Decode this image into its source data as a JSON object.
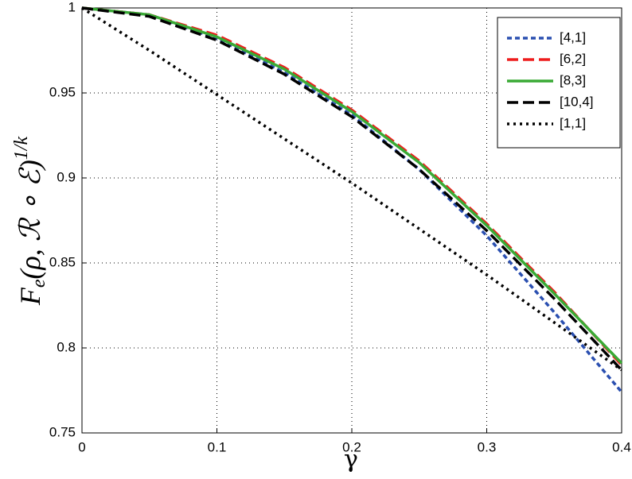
{
  "chart_data": {
    "type": "line",
    "x_label": "γ",
    "y_label": {
      "base": "F",
      "sub": "e",
      "main": "(ρ, ℛ ∘ ℰ)",
      "sup": "1/k"
    },
    "x": [
      0,
      0.05,
      0.1,
      0.15,
      0.2,
      0.25,
      0.3,
      0.35,
      0.4
    ],
    "series": [
      {
        "name": "[4,1]",
        "color": "#2a4fb0",
        "dash": "short",
        "values": [
          1,
          0.996,
          0.982,
          0.962,
          0.937,
          0.905,
          0.866,
          0.821,
          0.774
        ]
      },
      {
        "name": "[6,2]",
        "color": "#ee1c1c",
        "dash": "long",
        "values": [
          1,
          0.996,
          0.984,
          0.965,
          0.94,
          0.91,
          0.873,
          0.833,
          0.79
        ]
      },
      {
        "name": "[8,3]",
        "color": "#3aaa35",
        "dash": "solid",
        "values": [
          1,
          0.996,
          0.983,
          0.964,
          0.939,
          0.909,
          0.872,
          0.832,
          0.791
        ]
      },
      {
        "name": "[10,4]",
        "color": "#000000",
        "dash": "long",
        "values": [
          1,
          0.995,
          0.981,
          0.961,
          0.936,
          0.905,
          0.869,
          0.829,
          0.787
        ]
      },
      {
        "name": "[1,1]",
        "color": "#000000",
        "dash": "dot",
        "values": [
          1,
          0.975,
          0.949,
          0.923,
          0.897,
          0.87,
          0.843,
          0.815,
          0.787
        ]
      }
    ],
    "xlim": [
      0,
      0.4
    ],
    "xticks": [
      0,
      0.1,
      0.2,
      0.3,
      0.4
    ],
    "ylim": [
      0.75,
      1
    ],
    "yticks": [
      0.75,
      0.8,
      0.85,
      0.9,
      0.95,
      1
    ],
    "grid": true,
    "legend": "top-right"
  }
}
